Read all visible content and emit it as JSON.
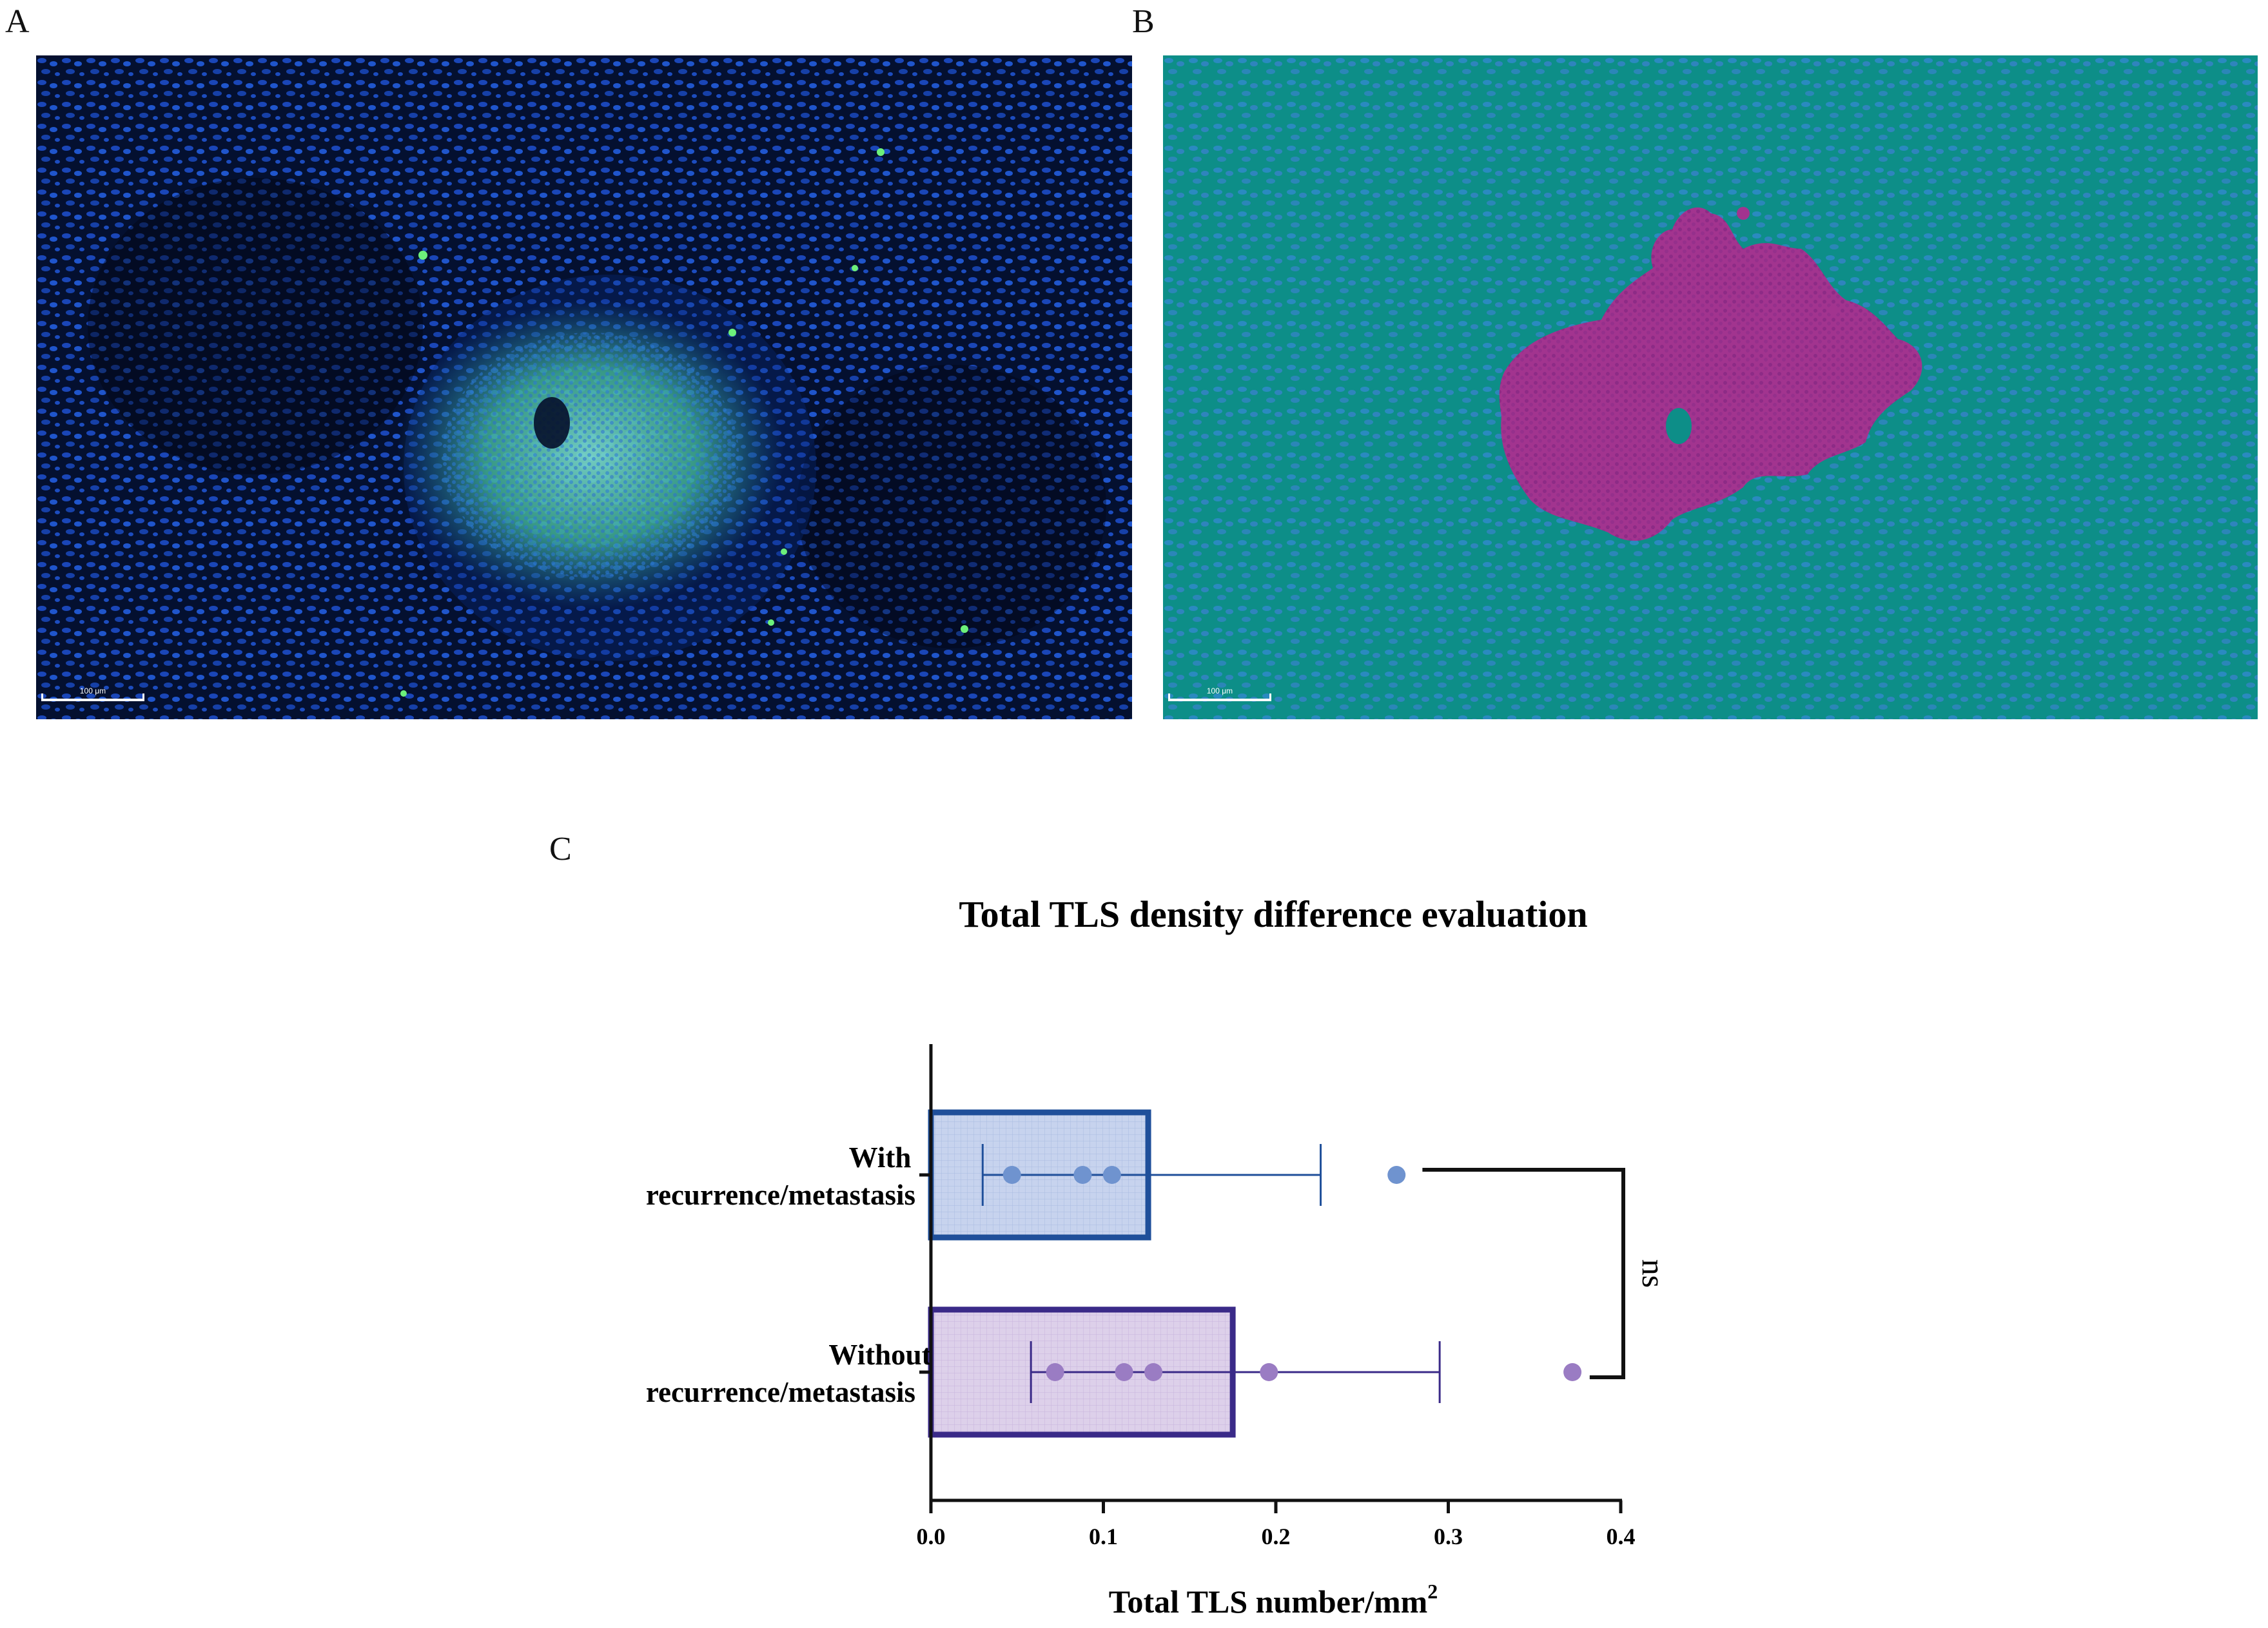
{
  "panels": {
    "a": {
      "letter": "A",
      "scale_label": "100 μm"
    },
    "b": {
      "letter": "B",
      "scale_label": "100 μm"
    },
    "c": {
      "letter": "C"
    }
  },
  "colors": {
    "with_fill": "#c7d3ee",
    "with_edge": "#1f4f9a",
    "with_point": "#6f93cf",
    "without_fill": "#ddd0ea",
    "without_edge": "#3a2a88",
    "without_point": "#9a7cc3",
    "axis": "#111111"
  },
  "chart_data": {
    "type": "bar",
    "orientation": "horizontal",
    "title": "Total TLS density difference evaluation",
    "xlabel": "Total TLS number/mm",
    "xlabel_superscript": "2",
    "xlim": [
      0.0,
      0.4
    ],
    "xticks": [
      "0.0",
      "0.1",
      "0.2",
      "0.3",
      "0.4"
    ],
    "xtick_values": [
      0.0,
      0.1,
      0.2,
      0.3,
      0.4
    ],
    "categories": [
      {
        "id": "with",
        "label_lines": [
          "With",
          "recurrence/metastasis"
        ],
        "mean": 0.126,
        "error_low": 0.03,
        "error_high": 0.226,
        "points": [
          0.047,
          0.088,
          0.105,
          0.27
        ]
      },
      {
        "id": "without",
        "label_lines": [
          "Without",
          "recurrence/metastasis"
        ],
        "mean": 0.175,
        "error_low": 0.058,
        "error_high": 0.295,
        "points": [
          0.072,
          0.112,
          0.129,
          0.196,
          0.372
        ]
      }
    ],
    "significance": "ns"
  }
}
